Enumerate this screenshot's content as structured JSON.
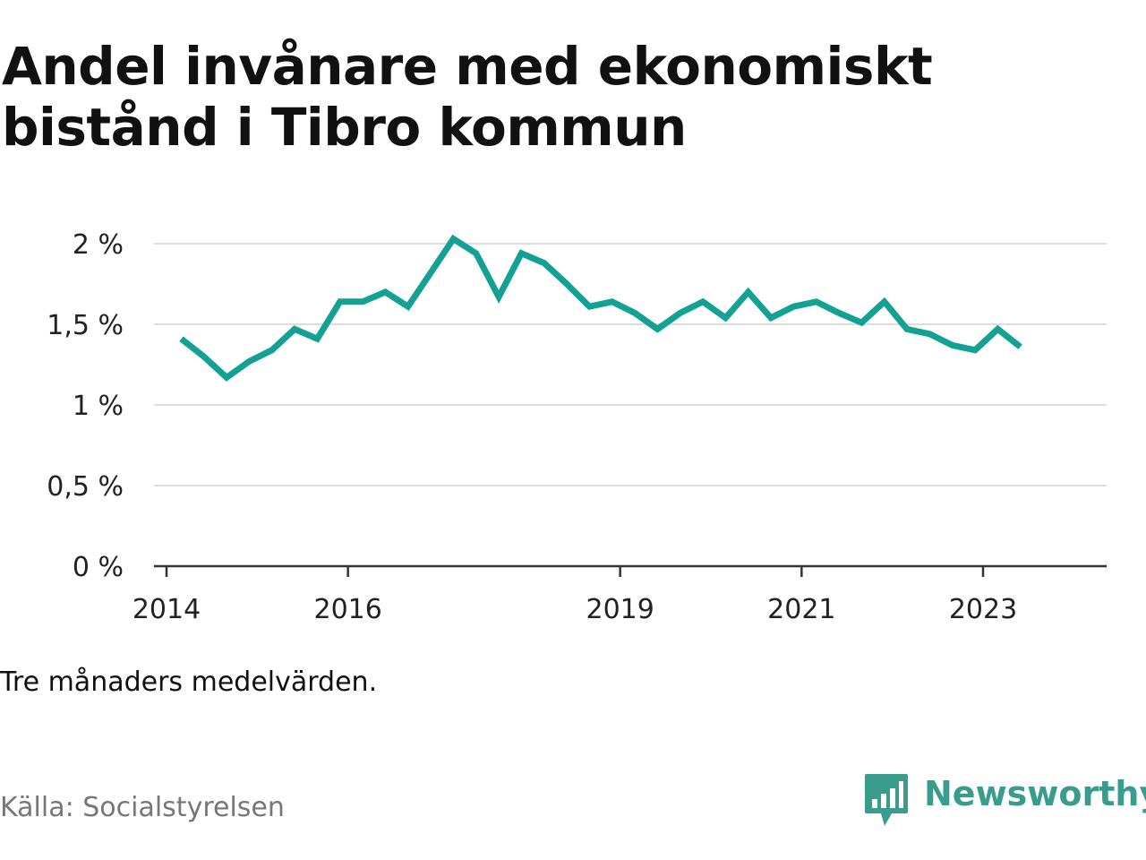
{
  "title": "Andel invånare med ekonomiskt bistånd i Tibro kommun",
  "note": "Tre månaders medelvärden.",
  "source": "Källa: Socialstyrelsen",
  "brand": {
    "name": "Newsworthy",
    "logo_icon": "bar-chart-speech-bubble-icon",
    "color": "#3a9c8d"
  },
  "chart_data": {
    "type": "line",
    "line_color": "#12a193",
    "grid": true,
    "ylim": [
      0,
      2
    ],
    "y_ticks": [
      {
        "value": 2,
        "label": "2 %"
      },
      {
        "value": 1.5,
        "label": "1,5 %"
      },
      {
        "value": 1,
        "label": "1 %"
      },
      {
        "value": 0.5,
        "label": "0,5 %"
      },
      {
        "value": 0,
        "label": "0 %"
      }
    ],
    "xlim": [
      2014.0,
      2024.5
    ],
    "x_ticks": [
      {
        "value": 2014,
        "label": "2014"
      },
      {
        "value": 2016,
        "label": "2016"
      },
      {
        "value": 2019,
        "label": "2019"
      },
      {
        "value": 2021,
        "label": "2021"
      },
      {
        "value": 2023,
        "label": "2023"
      }
    ],
    "series": [
      {
        "values": [
          [
            2014.3,
            1.41
          ],
          [
            2014.55,
            1.3
          ],
          [
            2014.8,
            1.17
          ],
          [
            2015.05,
            1.27
          ],
          [
            2015.3,
            1.34
          ],
          [
            2015.55,
            1.47
          ],
          [
            2015.8,
            1.41
          ],
          [
            2016.05,
            1.64
          ],
          [
            2016.3,
            1.64
          ],
          [
            2016.55,
            1.7
          ],
          [
            2016.8,
            1.61
          ],
          [
            2017.05,
            1.82
          ],
          [
            2017.3,
            2.03
          ],
          [
            2017.55,
            1.94
          ],
          [
            2017.8,
            1.67
          ],
          [
            2018.05,
            1.94
          ],
          [
            2018.3,
            1.88
          ],
          [
            2018.55,
            1.75
          ],
          [
            2018.8,
            1.61
          ],
          [
            2019.05,
            1.64
          ],
          [
            2019.3,
            1.57
          ],
          [
            2019.55,
            1.47
          ],
          [
            2019.8,
            1.57
          ],
          [
            2020.05,
            1.64
          ],
          [
            2020.3,
            1.54
          ],
          [
            2020.55,
            1.7
          ],
          [
            2020.8,
            1.54
          ],
          [
            2021.05,
            1.61
          ],
          [
            2021.3,
            1.64
          ],
          [
            2021.55,
            1.57
          ],
          [
            2021.8,
            1.51
          ],
          [
            2022.05,
            1.64
          ],
          [
            2022.3,
            1.47
          ],
          [
            2022.55,
            1.44
          ],
          [
            2022.8,
            1.37
          ],
          [
            2023.05,
            1.34
          ],
          [
            2023.3,
            1.47
          ],
          [
            2023.55,
            1.36
          ]
        ]
      }
    ]
  }
}
